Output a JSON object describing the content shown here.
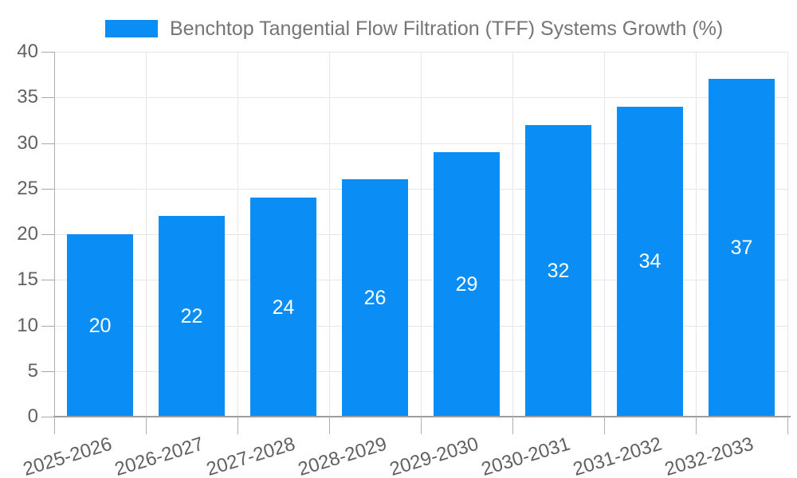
{
  "chart_data": {
    "type": "bar",
    "title": "",
    "legend": {
      "label": "Benchtop Tangential Flow Filtration (TFF) Systems Growth (%)",
      "position": "top"
    },
    "categories": [
      "2025-2026",
      "2026-2027",
      "2027-2028",
      "2028-2029",
      "2029-2030",
      "2030-2031",
      "2031-2032",
      "2032-2033"
    ],
    "series": [
      {
        "name": "Benchtop Tangential Flow Filtration (TFF) Systems Growth (%)",
        "values": [
          20,
          22,
          24,
          26,
          29,
          32,
          34,
          37
        ]
      }
    ],
    "values": [
      20,
      22,
      24,
      26,
      29,
      32,
      34,
      37
    ],
    "value_labels": [
      "20",
      "22",
      "24",
      "26",
      "29",
      "32",
      "34",
      "37"
    ],
    "xlabel": "",
    "ylabel": "",
    "ylim": [
      0,
      40
    ],
    "y_ticks": [
      0,
      5,
      10,
      15,
      20,
      25,
      30,
      35,
      40
    ],
    "grid": true,
    "x_label_rotation_deg": -17,
    "colors": {
      "bar": "#0a8ef5",
      "value_label": "#ffffff",
      "axis_text": "#616161",
      "legend_text": "#757575",
      "gridline": "#e6e6e6"
    }
  }
}
